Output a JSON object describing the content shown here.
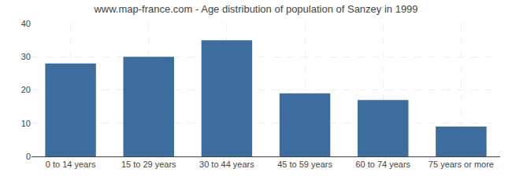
{
  "chart_data": {
    "type": "bar",
    "title": "www.map-france.com - Age distribution of population of Sanzey in 1999",
    "categories": [
      "0 to 14 years",
      "15 to 29 years",
      "30 to 44 years",
      "45 to 59 years",
      "60 to 74 years",
      "75 years or more"
    ],
    "values": [
      28,
      30,
      35,
      19,
      17,
      9
    ],
    "color": "#3d6d9e",
    "ylim": [
      0,
      40
    ],
    "yticks": [
      0,
      10,
      20,
      30,
      40
    ],
    "grid": true
  }
}
